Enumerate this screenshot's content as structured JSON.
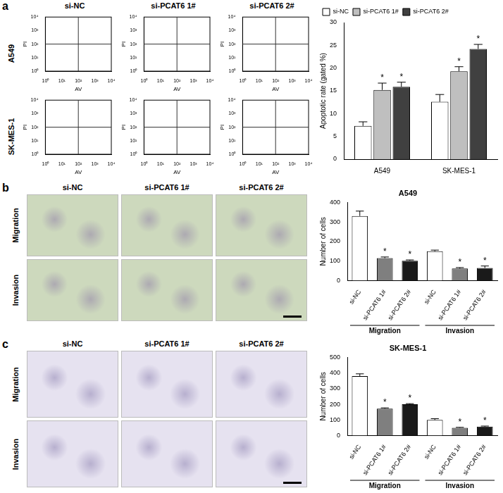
{
  "panel_labels": [
    "a",
    "b",
    "c"
  ],
  "flow": {
    "rows": [
      "A549",
      "SK-MES-1"
    ],
    "columns": [
      "si-NC",
      "si-PCAT6 1#",
      "si-PCAT6 2#"
    ]
  },
  "images": [
    {
      "rows": [
        "Migration",
        "Invasion"
      ],
      "columns": [
        "si-NC",
        "si-PCAT6 1#",
        "si-PCAT6 2#"
      ]
    },
    {
      "rows": [
        "Migration",
        "Invasion"
      ],
      "columns": [
        "si-NC",
        "si-PCAT6 1#",
        "si-PCAT6 2#"
      ]
    }
  ],
  "chart_data": [
    {
      "type": "scatter",
      "x_label": "AV",
      "y_label": "PI",
      "log": true,
      "grid": false,
      "xlim": [
        1,
        10000
      ],
      "ylim": [
        1,
        10000
      ],
      "xticks": [
        {
          "value": 1,
          "label": "10⁰"
        },
        {
          "value": 10,
          "label": "10¹"
        },
        {
          "value": 100,
          "label": "10²"
        },
        {
          "value": 1000,
          "label": "10³"
        },
        {
          "value": 10000,
          "label": "10⁴"
        }
      ],
      "yticks": [
        {
          "value": 1,
          "label": "10⁰"
        },
        {
          "value": 10,
          "label": "10¹"
        },
        {
          "value": 100,
          "label": "10²"
        },
        {
          "value": 1000,
          "label": "10³"
        },
        {
          "value": 10000,
          "label": "10⁴"
        }
      ],
      "gate": {
        "x": 100,
        "y": 100
      }
    },
    {
      "type": "scatter",
      "x_label": "AV",
      "y_label": "PI",
      "log": true,
      "grid": false,
      "xlim": [
        1,
        10000
      ],
      "ylim": [
        1,
        10000
      ],
      "xticks": [
        {
          "value": 1,
          "label": "10⁰"
        },
        {
          "value": 10,
          "label": "10¹"
        },
        {
          "value": 100,
          "label": "10²"
        },
        {
          "value": 1000,
          "label": "10³"
        },
        {
          "value": 10000,
          "label": "10⁴"
        }
      ],
      "yticks": [
        {
          "value": 1,
          "label": "10⁰"
        },
        {
          "value": 10,
          "label": "10¹"
        },
        {
          "value": 100,
          "label": "10²"
        },
        {
          "value": 1000,
          "label": "10³"
        },
        {
          "value": 10000,
          "label": "10⁴"
        }
      ],
      "gate": {
        "x": 100,
        "y": 100
      }
    },
    {
      "type": "scatter",
      "x_label": "AV",
      "y_label": "PI",
      "log": true,
      "grid": false,
      "xlim": [
        1,
        10000
      ],
      "ylim": [
        1,
        10000
      ],
      "xticks": [
        {
          "value": 1,
          "label": "10⁰"
        },
        {
          "value": 10,
          "label": "10¹"
        },
        {
          "value": 100,
          "label": "10²"
        },
        {
          "value": 1000,
          "label": "10³"
        },
        {
          "value": 10000,
          "label": "10⁴"
        }
      ],
      "yticks": [
        {
          "value": 1,
          "label": "10⁰"
        },
        {
          "value": 10,
          "label": "10¹"
        },
        {
          "value": 100,
          "label": "10²"
        },
        {
          "value": 1000,
          "label": "10³"
        },
        {
          "value": 10000,
          "label": "10⁴"
        }
      ],
      "gate": {
        "x": 100,
        "y": 100
      }
    },
    {
      "type": "scatter",
      "x_label": "AV",
      "y_label": "PI",
      "log": true,
      "grid": false,
      "xlim": [
        1,
        10000
      ],
      "ylim": [
        1,
        10000
      ],
      "xticks": [
        {
          "value": 1,
          "label": "10⁰"
        },
        {
          "value": 10,
          "label": "10¹"
        },
        {
          "value": 100,
          "label": "10²"
        },
        {
          "value": 1000,
          "label": "10³"
        },
        {
          "value": 10000,
          "label": "10⁴"
        }
      ],
      "yticks": [
        {
          "value": 1,
          "label": "10⁰"
        },
        {
          "value": 10,
          "label": "10¹"
        },
        {
          "value": 100,
          "label": "10²"
        },
        {
          "value": 1000,
          "label": "10³"
        },
        {
          "value": 10000,
          "label": "10⁴"
        }
      ],
      "gate": {
        "x": 100,
        "y": 100
      }
    },
    {
      "type": "scatter",
      "x_label": "AV",
      "y_label": "PI",
      "log": true,
      "grid": false,
      "xlim": [
        1,
        10000
      ],
      "ylim": [
        1,
        10000
      ],
      "xticks": [
        {
          "value": 1,
          "label": "10⁰"
        },
        {
          "value": 10,
          "label": "10¹"
        },
        {
          "value": 100,
          "label": "10²"
        },
        {
          "value": 1000,
          "label": "10³"
        },
        {
          "value": 10000,
          "label": "10⁴"
        }
      ],
      "yticks": [
        {
          "value": 1,
          "label": "10⁰"
        },
        {
          "value": 10,
          "label": "10¹"
        },
        {
          "value": 100,
          "label": "10²"
        },
        {
          "value": 1000,
          "label": "10³"
        },
        {
          "value": 10000,
          "label": "10⁴"
        }
      ],
      "gate": {
        "x": 100,
        "y": 100
      }
    },
    {
      "type": "scatter",
      "x_label": "AV",
      "y_label": "PI",
      "log": true,
      "grid": false,
      "xlim": [
        1,
        10000
      ],
      "ylim": [
        1,
        10000
      ],
      "xticks": [
        {
          "value": 1,
          "label": "10⁰"
        },
        {
          "value": 10,
          "label": "10¹"
        },
        {
          "value": 100,
          "label": "10²"
        },
        {
          "value": 1000,
          "label": "10³"
        },
        {
          "value": 10000,
          "label": "10⁴"
        }
      ],
      "yticks": [
        {
          "value": 1,
          "label": "10⁰"
        },
        {
          "value": 10,
          "label": "10¹"
        },
        {
          "value": 100,
          "label": "10²"
        },
        {
          "value": 1000,
          "label": "10³"
        },
        {
          "value": 10000,
          "label": "10⁴"
        }
      ],
      "gate": {
        "x": 100,
        "y": 100
      }
    },
    {
      "type": "bar",
      "y_label": "Apoptotic rate (gated %)",
      "categories": [
        "A549",
        "SK-MES-1"
      ],
      "series": [
        {
          "name": "si-NC",
          "color": "#ffffff",
          "values": [
            7.3,
            12.6
          ],
          "errors": [
            0.9,
            1.6
          ],
          "significance": [
            null,
            null
          ]
        },
        {
          "name": "si-PCAT6 1#",
          "color": "#bfbfbf",
          "values": [
            15.2,
            19.3
          ],
          "errors": [
            1.5,
            1.0
          ],
          "significance": [
            "*",
            "*"
          ]
        },
        {
          "name": "si-PCAT6 2#",
          "color": "#404040",
          "values": [
            15.9,
            24.2
          ],
          "errors": [
            1.0,
            1.0
          ],
          "significance": [
            "*",
            "*"
          ]
        }
      ],
      "ylim": [
        0,
        30
      ],
      "yticks": [
        0,
        5,
        10,
        15,
        20,
        25,
        30
      ],
      "grid": false,
      "legend": "upper left"
    },
    {
      "type": "bar",
      "title": "A549",
      "y_label": "Number of cells",
      "categories": [
        "si-NC",
        "si-PCAT6 1#",
        "si-PCAT6 2#",
        "si-NC",
        "si-PCAT6 1#",
        "si-PCAT6 2#"
      ],
      "groups": [
        "Migration",
        "Migration",
        "Migration",
        "Invasion",
        "Invasion",
        "Invasion"
      ],
      "values": [
        330,
        115,
        102,
        150,
        62,
        65
      ],
      "errors": [
        25,
        6,
        4,
        6,
        5,
        10
      ],
      "significance": [
        null,
        "*",
        "*",
        null,
        "*",
        "*"
      ],
      "colors": [
        "#ffffff",
        "#7f7f7f",
        "#1a1a1a",
        "#ffffff",
        "#7f7f7f",
        "#1a1a1a"
      ],
      "ylim": [
        0,
        400
      ],
      "yticks": [
        0,
        100,
        200,
        300,
        400
      ],
      "grid": false
    },
    {
      "type": "bar",
      "title": "SK-MES-1",
      "y_label": "Number of cells",
      "categories": [
        "si-NC",
        "si-PCAT6 1#",
        "si-PCAT6 2#",
        "si-NC",
        "si-PCAT6 1#",
        "si-PCAT6 2#"
      ],
      "groups": [
        "Migration",
        "Migration",
        "Migration",
        "Invasion",
        "Invasion",
        "Invasion"
      ],
      "values": [
        380,
        172,
        200,
        100,
        50,
        57
      ],
      "errors": [
        14,
        5,
        4,
        8,
        3,
        4
      ],
      "significance": [
        null,
        "*",
        "*",
        null,
        "*",
        "*"
      ],
      "colors": [
        "#ffffff",
        "#7f7f7f",
        "#1a1a1a",
        "#ffffff",
        "#7f7f7f",
        "#1a1a1a"
      ],
      "ylim": [
        0,
        500
      ],
      "yticks": [
        0,
        100,
        200,
        300,
        400,
        500
      ],
      "grid": false
    }
  ]
}
